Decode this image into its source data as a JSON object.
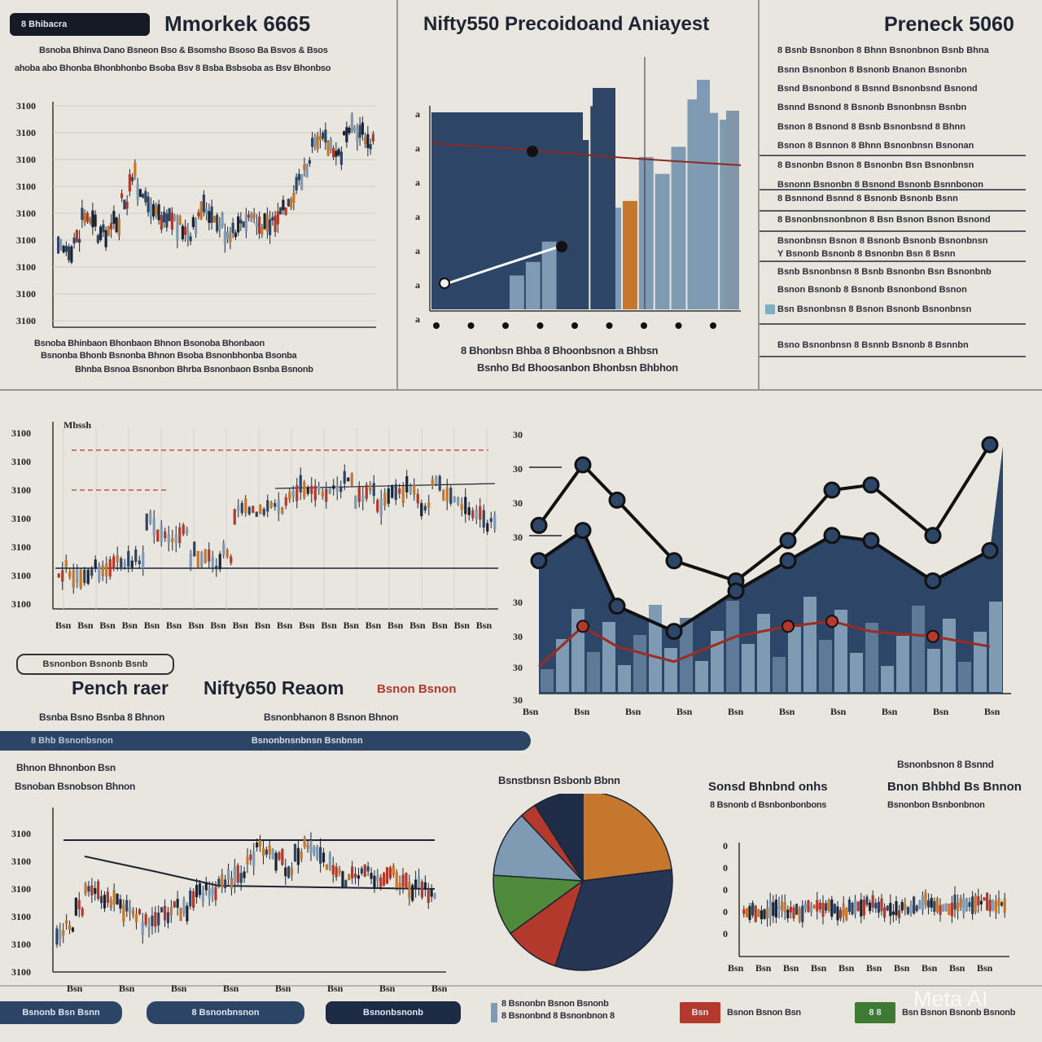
{
  "header": {
    "badge_text": "8 Bhibacra",
    "left_title": "Mmorkek 6665",
    "left_sub_1": "Bsnoba Bhinva Dano Bsneon Bso & Bsomsho Bsoso Ba Bsvos & Bsos",
    "left_sub_2": "ahoba abo Bhonba Bhonbhonbo Bsoba Bsv 8 Bsba Bsbsoba as Bsv Bhonbso",
    "center_title": "Nifty550 Precoidoand Aniayest",
    "right_title": "Preneck 5060"
  },
  "captions": {
    "top_left_1": "Bsnoba Bhinbaon Bhonbaon Bhnon Bsonoba Bhonbaon",
    "top_left_2": "Bsnonba Bhonb Bsnonba Bhnon Bsoba Bsnonbhonba Bsonba",
    "top_left_3": "Bhnba Bsnoa Bsnonbon Bhrba Bsnonbaon Bsnba Bsnonb",
    "top_center_1": "8 Bhonbsn Bhba 8 Bhoonbsnon a Bhbsn",
    "top_center_2": "Bsnho Bd Bhoosanbon Bhonbsn Bhbhon",
    "mid_left_title": "Pench raer",
    "mid_center_title": "Nifty650 Reaom",
    "mid_red_text": "Bsnon Bsnon",
    "mid_sub_1": "Bsnba Bsno Bsnba 8 Bhnon",
    "mid_sub_2": "Bsnonbhanon 8 Bsnon Bhnon",
    "bottom_left_1": "Bhnon Bhnonbon Bsn",
    "bottom_left_2": "Bsnoban Bsnobson Bhnon",
    "pie_title": "Bsnstbnsn Bsbonb Bbnn",
    "bottom_right_title_1": "Sonsd Bhnbnd onhs",
    "bottom_right_sub_1": "8 Bsnonb d Bsnbonbonbons",
    "bottom_right_title_2": "Bnon Bhbhd Bs Bnnon",
    "bottom_right_sub_2": "Bsnonbon Bsnbonbnon",
    "bottom_right_top": "Bsnonbsnon 8 Bsnnd"
  },
  "side_list": [
    "8 Bsnb Bsnonbon 8 Bhnn Bsnonbnon Bsnb Bhna",
    "Bsnn Bsnonbon 8 Bsnonb Bnanon Bsnonbn",
    "Bsnd Bsnonbond 8 Bsnnd Bsnonbsnd Bsnond",
    "Bsnnd Bsnond 8 Bsnonb Bsnonbnsn Bsnbn",
    "Bsnon 8 Bsnond 8 Bsnb Bsnonbsnd 8 Bhnn",
    "Bsnon 8 Bsnnon 8 Bhnn Bsnonbnsn Bsnonan",
    "8 Bsnonbn Bsnon 8 Bsnonbn Bsn Bsnonbnsn",
    "Bsnonn Bsnonbn 8 Bsnond Bsnonb Bsnnbonon",
    "8 Bsnnond Bsnnd 8 Bsnonb Bsnonb Bsnn",
    "8 Bsnonbnsnonbnon 8 Bsn Bsnon Bsnon Bsnond",
    "Bsnonbnsn Bsnon 8 Bsnonb Bsnonb Bsnonbnsn",
    "Y Bsnonb Bsnonb 8 Bsnonbn Bsn 8 Bsnn",
    "Bsnb Bsnonbnsn 8 Bsnb Bsnonbn Bsn Bsnonbnb",
    "Bsnon Bsnonb 8 Bsnonb Bsnonbond Bsnon",
    "Bsn Bsnonbnsn 8 Bsnon Bsnonb Bsnonbnsn",
    "Bsno Bsnonbnsn 8 Bsnnb Bsnonb 8 Bsnnbn"
  ],
  "strip": {
    "left_text": "8 Bhb Bsnonbsnon",
    "center_text": "Bsnonbnsnbnsn Bsnbnsn"
  },
  "mid_pill": "Bsnonbon Bsnonb Bsnb",
  "footer": {
    "btn1": "Bsnonb Bsn Bsnn",
    "btn2": "8 Bsnonbnsnon",
    "btn3": "Bsnonbsnonb",
    "legend_text_1": "8 Bsnonbn Bsnon Bsnonb",
    "legend_text_2": "8 Bsnonbnd 8 Bsnonbnon 8",
    "red_box_label": "Bsn",
    "red_box_text": "Bsnon Bsnon Bsn",
    "green_box_label": "8 8",
    "green_box_text": "Bsn Bsnon Bsnonb Bsnonb",
    "watermark": "Meta AI"
  },
  "colors": {
    "navy": "#2f4566",
    "steel": "#7e9bb3",
    "red": "#b2392b",
    "orange": "#c5772e",
    "green": "#4f8a3a",
    "dark": "#1b2435"
  },
  "chart_data": [
    {
      "id": "top-left-candles",
      "type": "line",
      "y_ticks": [
        "3100",
        "3100",
        "3100",
        "3100",
        "3100",
        "3100",
        "3100",
        "3100",
        "3100"
      ],
      "values": [
        34,
        36,
        40,
        52,
        48,
        42,
        44,
        50,
        60,
        72,
        66,
        58,
        52,
        48,
        50,
        46,
        44,
        50,
        56,
        54,
        48,
        44,
        46,
        50,
        52,
        48,
        46,
        50,
        58,
        62,
        70,
        78,
        86,
        90,
        88,
        84,
        92,
        96,
        94,
        90
      ]
    },
    {
      "id": "top-center-bars",
      "type": "bar",
      "y_ticks": [
        "a",
        "a",
        "a",
        "a",
        "a",
        "a",
        "a"
      ],
      "values": [
        10,
        14,
        20,
        36,
        50,
        60,
        30,
        32,
        45,
        40,
        48,
        62,
        58,
        56
      ]
    },
    {
      "id": "mid-left-candles",
      "type": "line",
      "y_ticks": [
        "3100",
        "3100",
        "3100",
        "3100",
        "3100",
        "3100",
        "3100"
      ],
      "x_ticks": [
        "Bsn",
        "Bsn",
        "Bsn",
        "Bsn",
        "Bsn",
        "Bsn",
        "Bsn",
        "Bsn",
        "Bsn",
        "Bsn",
        "Bsn",
        "Bsn",
        "Bsn",
        "Bsn",
        "Bsn",
        "Bsn",
        "Bsn",
        "Bsn",
        "Bsn",
        "Bsn"
      ],
      "values": [
        20,
        18,
        16,
        20,
        22,
        24,
        26,
        28,
        50,
        40,
        38,
        44,
        30,
        26,
        24,
        30,
        58,
        60,
        56,
        64,
        62,
        66,
        72,
        70,
        68,
        74,
        78,
        66,
        70,
        62,
        68,
        72,
        70,
        60,
        74,
        66,
        62,
        58,
        56,
        50
      ]
    },
    {
      "id": "mid-right-area",
      "type": "area",
      "y_ticks": [
        "30",
        "30",
        "30",
        "30",
        "30",
        "30",
        "30",
        "30"
      ],
      "x_ticks": [
        "Bsn",
        "Bsn",
        "Bsn",
        "Bsn",
        "Bsn",
        "Bsn",
        "Bsn",
        "Bsn",
        "Bsn",
        "Bsn"
      ],
      "series": [
        {
          "values": [
            66,
            90,
            76,
            52,
            44,
            60,
            80,
            82,
            62,
            98
          ]
        },
        {
          "values": [
            52,
            64,
            34,
            24,
            40,
            52,
            62,
            60,
            44,
            56
          ]
        },
        {
          "values": [
            10,
            26,
            18,
            12,
            22,
            26,
            28,
            24,
            22,
            18
          ]
        }
      ]
    },
    {
      "id": "bottom-left-candles",
      "type": "line",
      "y_ticks": [
        "3100",
        "3100",
        "3100",
        "3100",
        "3100",
        "3100"
      ],
      "x_ticks": [
        "Bsn",
        "Bsn",
        "Bsn",
        "Bsn",
        "Bsn",
        "Bsn",
        "Bsn",
        "Bsn"
      ],
      "values": [
        22,
        28,
        40,
        54,
        50,
        46,
        44,
        40,
        36,
        30,
        34,
        38,
        42,
        40,
        48,
        52,
        50,
        56,
        60,
        62,
        70,
        80,
        78,
        72,
        66,
        74,
        82,
        78,
        70,
        64,
        60,
        62,
        66,
        58,
        60,
        62,
        58,
        54,
        56,
        52
      ]
    },
    {
      "id": "bottom-pie",
      "type": "pie",
      "values": [
        23,
        32,
        10,
        11,
        12,
        3,
        9
      ],
      "colors": [
        "#c5772e",
        "#253553",
        "#b2392b",
        "#4f8a3a",
        "#7e9bb3",
        "#b2392b",
        "#1f2c47"
      ]
    },
    {
      "id": "bottom-right-candles",
      "type": "line",
      "y_ticks": [
        "0",
        "0",
        "0",
        "0",
        "0"
      ],
      "x_ticks": [
        "Bsn",
        "Bsn",
        "Bsn",
        "Bsn",
        "Bsn",
        "Bsn",
        "Bsn",
        "Bsn",
        "Bsn",
        "Bsn"
      ],
      "values": [
        40,
        42,
        38,
        44,
        46,
        42,
        40,
        44,
        48,
        46,
        42,
        40,
        44,
        46,
        50,
        48,
        44,
        42,
        46,
        48,
        52,
        50,
        46,
        44,
        48,
        50,
        52,
        54,
        50,
        48
      ]
    }
  ]
}
